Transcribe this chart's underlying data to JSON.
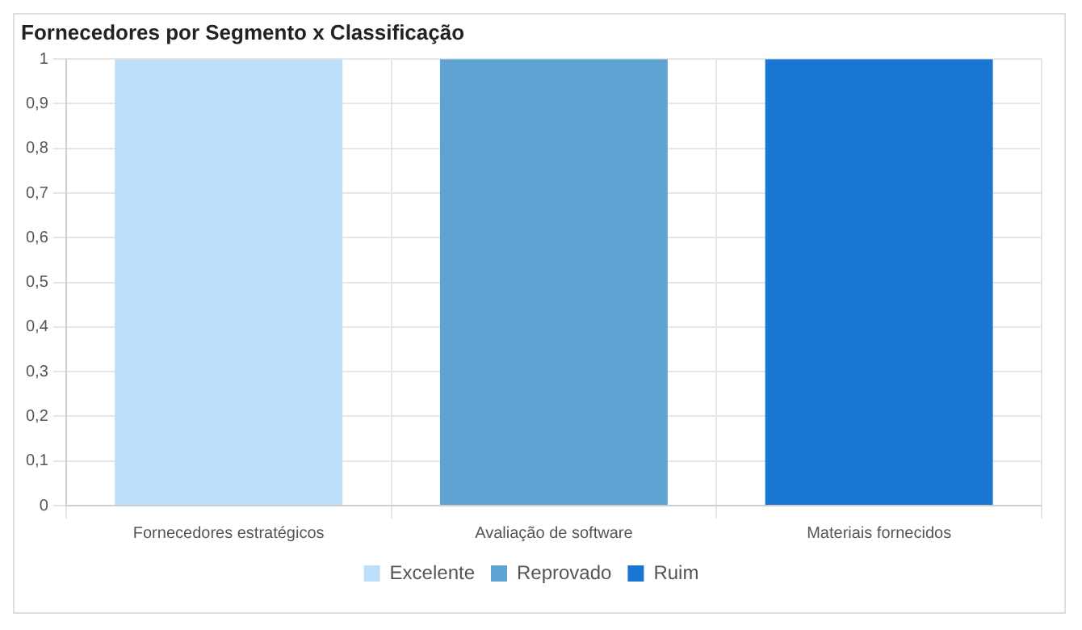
{
  "chart_data": {
    "type": "bar",
    "title": "Fornecedores por Segmento x Classificação",
    "categories": [
      "Fornecedores estratégicos",
      "Avaliação de software",
      "Materiais fornecidos"
    ],
    "series": [
      {
        "name": "Excelente",
        "color": "#bbdefb",
        "values": [
          1,
          null,
          null
        ]
      },
      {
        "name": "Reprovado",
        "color": "#5fa3d3",
        "values": [
          null,
          1,
          null
        ]
      },
      {
        "name": "Ruim",
        "color": "#1976d2",
        "values": [
          null,
          null,
          1
        ]
      }
    ],
    "ylim": [
      0,
      1
    ],
    "yticks": [
      0,
      {
        "value": 0.1,
        "label": "0,1"
      },
      {
        "value": 0.2,
        "label": "0,2"
      },
      {
        "value": 0.3,
        "label": "0,3"
      },
      {
        "value": 0.4,
        "label": "0,4"
      },
      {
        "value": 0.5,
        "label": "0,5"
      },
      {
        "value": 0.6,
        "label": "0,6"
      },
      {
        "value": 0.7,
        "label": "0,7"
      },
      {
        "value": 0.8,
        "label": "0,8"
      },
      {
        "value": 0.9,
        "label": "0,9"
      },
      1
    ],
    "grid": true,
    "legend": "bottom"
  }
}
